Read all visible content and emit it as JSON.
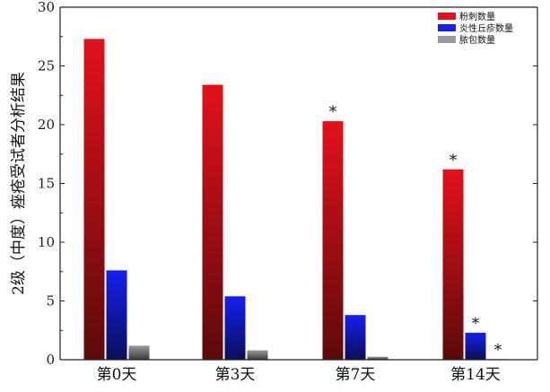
{
  "chart_data": {
    "type": "bar",
    "title": "",
    "ylabel": "2级（中度）痤疮受试者分析结果",
    "xlabel": "",
    "ylim": [
      0,
      30
    ],
    "yticks": [
      0,
      5,
      10,
      15,
      20,
      25,
      30
    ],
    "categories": [
      "第0天",
      "第3天",
      "第7天",
      "第14天"
    ],
    "series": [
      {
        "name": "粉刺数量",
        "values": [
          27.3,
          23.4,
          20.3,
          16.2
        ],
        "color": "#e3111b",
        "color_dark": "#5c0a0a",
        "markers": [
          "",
          "",
          "*",
          "*"
        ]
      },
      {
        "name": "炎性丘疹数量",
        "values": [
          7.6,
          5.4,
          3.8,
          2.3
        ],
        "color": "#1420ee",
        "color_dark": "#0a0f5a",
        "markers": [
          "",
          "",
          "",
          "*"
        ]
      },
      {
        "name": "脓包数量",
        "values": [
          1.2,
          0.8,
          0.25,
          0.05
        ],
        "color": "#9a9a9a",
        "color_dark": "#3a3a3a",
        "markers": [
          "",
          "",
          "",
          "*"
        ]
      }
    ],
    "legend": "top-right",
    "grid": false
  }
}
